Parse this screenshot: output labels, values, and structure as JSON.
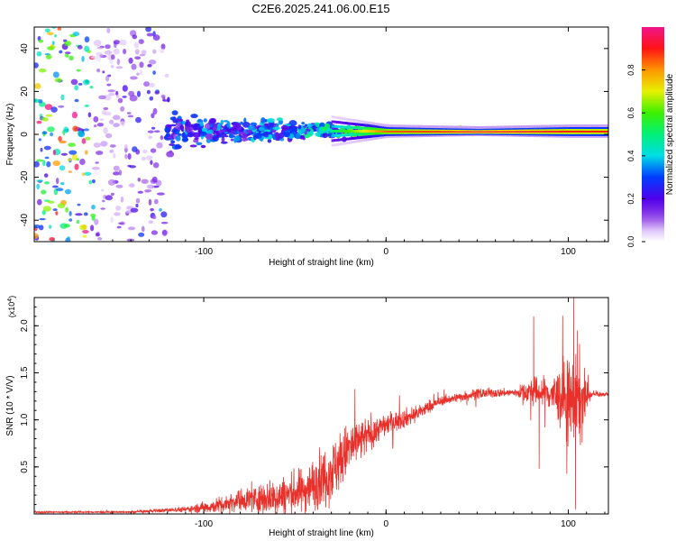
{
  "title": "C2E6.2025.241.06.00.E15",
  "chart_data": [
    {
      "type": "heatmap",
      "title": "C2E6.2025.241.06.00.E15",
      "xlabel": "Height of straight line (km)",
      "ylabel": "Frequency (Hz)",
      "xlim": [
        -193,
        122
      ],
      "ylim": [
        -50,
        50
      ],
      "x_ticks": [
        -100,
        0,
        100
      ],
      "y_ticks": [
        -40,
        -20,
        0,
        20,
        40
      ],
      "colorbar": {
        "label": "Normalized spectral amplitude",
        "range": [
          0,
          1
        ],
        "ticks": [
          0.0,
          0.2,
          0.4,
          0.6,
          0.8
        ],
        "tick_labels": [
          "0.0",
          "0.2",
          "0.4",
          "0.6",
          "0.8"
        ],
        "colormap": "rainbow-white-to-magenta"
      },
      "description_points": [
        {
          "x": -160,
          "freq_spread": 50,
          "amplitude": 0.15
        },
        {
          "x": -110,
          "freq_spread": 8,
          "amplitude": 0.35
        },
        {
          "x": -60,
          "freq_spread": 6,
          "amplitude": 0.4
        },
        {
          "x": -30,
          "freq_spread": 4,
          "amplitude": 0.5
        },
        {
          "x": 0,
          "freq_spread": 1.5,
          "amplitude": 0.85
        },
        {
          "x": 50,
          "freq_spread": 1,
          "amplitude": 0.95
        },
        {
          "x": 100,
          "freq_spread": 1.5,
          "amplitude": 0.9
        }
      ],
      "carrier_freq": 1.5
    },
    {
      "type": "line",
      "xlabel": "Height of straight line (km)",
      "ylabel": "SNR (10 * V/V)",
      "scale_label_base": "(x10",
      "scale_label_exp": "4",
      "scale_label_end": ")",
      "xlim": [
        -193,
        122
      ],
      "ylim": [
        0,
        2.3
      ],
      "x_ticks": [
        -100,
        0,
        100
      ],
      "y_ticks": [
        0.5,
        1.0,
        1.5,
        2.0
      ],
      "y_tick_labels": [
        "0.5",
        "1.0",
        "1.5",
        "2.0"
      ],
      "series": [
        {
          "name": "SNR",
          "color": "#e8312b",
          "envelope": [
            {
              "x": -193,
              "mean": 0.02,
              "noise": 0.01
            },
            {
              "x": -140,
              "mean": 0.02,
              "noise": 0.01
            },
            {
              "x": -110,
              "mean": 0.05,
              "noise": 0.03
            },
            {
              "x": -95,
              "mean": 0.08,
              "noise": 0.08
            },
            {
              "x": -80,
              "mean": 0.15,
              "noise": 0.12
            },
            {
              "x": -60,
              "mean": 0.18,
              "noise": 0.2
            },
            {
              "x": -45,
              "mean": 0.25,
              "noise": 0.25
            },
            {
              "x": -30,
              "mean": 0.45,
              "noise": 0.35
            },
            {
              "x": -20,
              "mean": 0.7,
              "noise": 0.3
            },
            {
              "x": -5,
              "mean": 0.9,
              "noise": 0.15
            },
            {
              "x": 0,
              "mean": 0.95,
              "noise": 0.12
            },
            {
              "x": 15,
              "mean": 1.05,
              "noise": 0.1
            },
            {
              "x": 30,
              "mean": 1.2,
              "noise": 0.05
            },
            {
              "x": 50,
              "mean": 1.28,
              "noise": 0.06
            },
            {
              "x": 70,
              "mean": 1.29,
              "noise": 0.04
            },
            {
              "x": 80,
              "mean": 1.3,
              "noise": 0.15
            },
            {
              "x": 90,
              "mean": 1.28,
              "noise": 0.2
            },
            {
              "x": 100,
              "mean": 1.2,
              "noise": 0.45
            },
            {
              "x": 107,
              "mean": 1.2,
              "noise": 0.5
            },
            {
              "x": 112,
              "mean": 1.27,
              "noise": 0.03
            },
            {
              "x": 122,
              "mean": 1.27,
              "noise": 0.02
            }
          ],
          "peaks": [
            {
              "x": 81,
              "y": 2.1
            },
            {
              "x": 84,
              "y": 0.48
            },
            {
              "x": 103,
              "y": 2.3
            },
            {
              "x": 104,
              "y": 0.05
            },
            {
              "x": 105,
              "y": 1.95
            }
          ]
        }
      ]
    }
  ]
}
